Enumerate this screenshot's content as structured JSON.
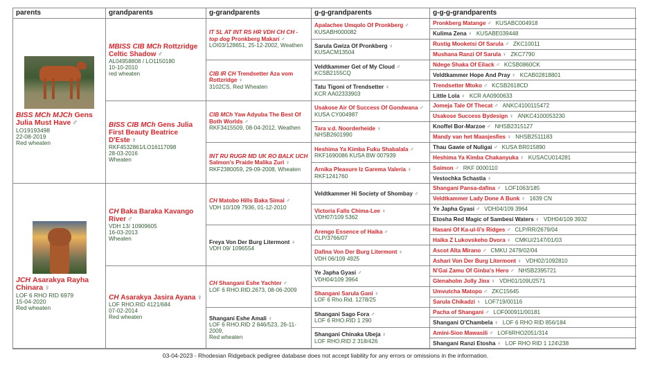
{
  "headers": [
    "parents",
    "grandparents",
    "g-grandparents",
    "g-g-grandparents",
    "g-g-g-grandparents"
  ],
  "colors": {
    "title_red": "#d7262b",
    "registration_green": "#2f5a2f",
    "border": "#8a8a8a"
  },
  "parents": [
    {
      "title": "BISS MCh MJCh",
      "name": "Gens Julia Must Have",
      "sex": "♂",
      "reg": [
        "LO19193498",
        "22-08-2019",
        "Red wheaten"
      ],
      "red": true,
      "photo": "dog-standing-in-field"
    },
    {
      "title": "JCH",
      "name": "Asarakya Rayha Chinara",
      "sex": "♀",
      "reg": [
        "LOF 6 RHO RID 6979",
        "15-04-2020",
        "Red wheaten"
      ],
      "red": true,
      "photo": "dog-sitting-at-sunset"
    }
  ],
  "grandparents": [
    {
      "title": "MBISS CIB MCh",
      "name": "Rottzridge Celtic Shadow",
      "sex": "♂",
      "reg": [
        "AL04958808 / LO1150180",
        "10-10-2010",
        "red wheaten"
      ],
      "red": true
    },
    {
      "title": "BISS CIB MCh",
      "name": "Gens Julia First Beauty Beatrice D'Este",
      "sex": "♀",
      "reg": [
        "RKF4532861/LO16117098",
        "28-03-2016",
        "Wheaten"
      ],
      "red": true
    },
    {
      "title": "CH",
      "name": "Baka Baraka Kavango River",
      "sex": "♂",
      "reg": [
        "VDH 13/ 10909605",
        "16-03-2013",
        "Wheaten"
      ],
      "red": true
    },
    {
      "title": "CH",
      "name": "Asarakya Jasira Ayana",
      "sex": "♀",
      "reg": [
        "LOF RHO.RID 4121/684",
        "07-02-2014",
        "Red wheaten"
      ],
      "red": true
    }
  ],
  "g_grandparents": [
    {
      "title": "IT SL AT INT RS HR VDH CH CH - top dog",
      "name": "Pronkberg Makari",
      "sex": "♂",
      "reg": [
        "LOI03/128651, 25-12-2002, Weathen"
      ],
      "red": true
    },
    {
      "title": "CIB IR CH",
      "name": "Trendsetter Aza vom Rottzridge",
      "sex": "♀",
      "reg": [
        "3102CS, Red Wheaten"
      ],
      "red": true
    },
    {
      "title": "CIB MCh",
      "name": "Yaw Adyuba The Best Of Both Worlds",
      "sex": "♂",
      "reg": [
        "RKF3415509, 08-04-2012, Weathen"
      ],
      "red": true
    },
    {
      "title": "INT RU RUGR MD UK RO BALK UCH",
      "name": "Salmon's Praide Malika Zuri",
      "sex": "♀",
      "reg": [
        "RKF2380059, 29-09-2008, Wheaten"
      ],
      "red": true
    },
    {
      "title": "CH",
      "name": "Matobo Hills Baka Simai",
      "sex": "♂",
      "reg": [
        "VDH 10/109 7936, 01-12-2010"
      ],
      "red": true
    },
    {
      "title": "",
      "name": "Freya Von Der Burg Litermont",
      "sex": "♀",
      "reg": [
        "VDH 09/ 1096554"
      ],
      "red": false
    },
    {
      "title": "CH",
      "name": "Shangani Eshe Yachter",
      "sex": "♂",
      "reg": [
        "LOF 6 RHO.RID.2673, 08-06-2009"
      ],
      "red": true
    },
    {
      "title": "",
      "name": "Shangani Eshe Amali",
      "sex": "♀",
      "reg": [
        "LOF 6 RHO.RID 2 846/523, 26-11-2009,",
        "Red wheaten"
      ],
      "red": false
    }
  ],
  "g_g_grandparents": [
    {
      "name": "Apalachee Umqolo Of Pronkberg",
      "sex": "♂",
      "reg": [
        "KUSABH000082"
      ],
      "red": true
    },
    {
      "name": "Sarula Gwiza Of Pronkberg",
      "sex": "♀",
      "reg": [
        "KUSACM13504"
      ],
      "red": false
    },
    {
      "name": "Veldtkammer Get of My Cloud",
      "sex": "♂",
      "reg": [
        "KCSB2155CQ"
      ],
      "red": false
    },
    {
      "name": "Tatu Tigoni of Trendsetter",
      "sex": "♀",
      "reg": [
        "KCR AA02333903"
      ],
      "red": false
    },
    {
      "name": "Usakose Air Of Success Of Gondwana",
      "sex": "♂",
      "reg": [
        "KUSA CY004987"
      ],
      "red": true
    },
    {
      "name": "Tara v.d. Noorderheide",
      "sex": "♀",
      "reg": [
        "NHSB2601990"
      ],
      "red": true
    },
    {
      "name": "Heshima Ya Kimba Fuku Shabalala",
      "sex": "♂",
      "reg": [
        "RKF1690086 KUSA BW 007939"
      ],
      "red": true
    },
    {
      "name": "Arnika Pleasure Iz Garema Valeria",
      "sex": "♀",
      "reg": [
        "RKF1241760"
      ],
      "red": true
    },
    {
      "name": "Veldtkammer Hi Society of Shombay",
      "sex": "♂",
      "reg": [],
      "red": false
    },
    {
      "name": "Victoria Falls Chima-Lee",
      "sex": "♀",
      "reg": [
        "VDH07/109 5362"
      ],
      "red": true
    },
    {
      "name": "Arengo Essence of Haika",
      "sex": "♂",
      "reg": [
        "CLP/3766/07"
      ],
      "red": true
    },
    {
      "name": "Dafina Von Der Burg Litermont",
      "sex": "♀",
      "reg": [
        "VDH 06/109 4925"
      ],
      "red": true
    },
    {
      "name": "Ye Japha Gyasi",
      "sex": "♂",
      "reg": [
        "VDH04/109 3964"
      ],
      "red": false
    },
    {
      "name": "Shangani Sarula Gani",
      "sex": "♀",
      "reg": [
        "LOF 6 Rho.Rid. 1278/25"
      ],
      "red": true
    },
    {
      "name": "Shangani Sago Fora",
      "sex": "♂",
      "reg": [
        "LOF 6 RHO.RID 1 290"
      ],
      "red": false
    },
    {
      "name": "Shangani Chinaka Ubeja",
      "sex": "♀",
      "reg": [
        "LOF RHO.RID 2 318/426"
      ],
      "red": false
    }
  ],
  "g_g_g_grandparents": [
    {
      "name": "Pronkberg Matange",
      "sex": "♂",
      "reg": [
        "KUSABC004918"
      ],
      "red": true
    },
    {
      "name": "Kulima Zena",
      "sex": "♀",
      "reg": [
        "KUSABE039448"
      ],
      "red": false
    },
    {
      "name": "Rustig Mooketsi Of Sarula",
      "sex": "♂",
      "reg": [
        "ZKC10011"
      ],
      "red": true
    },
    {
      "name": "Mushana Ranzi Of Sarula",
      "sex": "♀",
      "reg": [
        "ZKC7790"
      ],
      "red": true
    },
    {
      "name": "Ndege Shaka Of Eilack",
      "sex": "♂",
      "reg": [
        "KCSB0860CK"
      ],
      "red": true
    },
    {
      "name": "Veldtkammer Hope And Pray",
      "sex": "♀",
      "reg": [
        "KCAB02818801"
      ],
      "red": false
    },
    {
      "name": "Trendsetter Mtoko",
      "sex": "♂",
      "reg": [
        "KCSB2618CD"
      ],
      "red": true
    },
    {
      "name": "Little Lola",
      "sex": "♀",
      "reg": [
        "KCR AA0900633"
      ],
      "red": false
    },
    {
      "name": "Jomeja Tale Of Thecat",
      "sex": "♂",
      "reg": [
        "ANKC4100115472"
      ],
      "red": true
    },
    {
      "name": "Usakose Success Bydesign",
      "sex": "♀",
      "reg": [
        "ANKC4100053230"
      ],
      "red": true
    },
    {
      "name": "Knoffel Bor-Marzoe",
      "sex": "♂",
      "reg": [
        "NHSB2315127"
      ],
      "red": false
    },
    {
      "name": "Mandy van het Maasjesfies",
      "sex": "♀",
      "reg": [
        "NHSB2511183"
      ],
      "red": true
    },
    {
      "name": "Thau Gawie of Nuligai",
      "sex": "♂",
      "reg": [
        "KUSA BR015890"
      ],
      "red": false
    },
    {
      "name": "Heshima Ya Kimba Chakanyuka",
      "sex": "♀",
      "reg": [
        "KUSACU014281"
      ],
      "red": true
    },
    {
      "name": "Saimon",
      "sex": "♂",
      "reg": [
        "RKF 0000110"
      ],
      "red": true
    },
    {
      "name": "Vestochka Schastia",
      "sex": "♀",
      "reg": [],
      "red": false
    },
    {
      "name": "Shangani Pansa-dafina",
      "sex": "♂",
      "reg": [
        "LOF1063/185"
      ],
      "red": true
    },
    {
      "name": "Veldtkammer Lady Done A Bunk",
      "sex": "♀",
      "reg": [
        "1639 CN"
      ],
      "red": true
    },
    {
      "name": "Ye Japha Gyasi",
      "sex": "♂",
      "reg": [
        "VDH04/109 3964"
      ],
      "red": false
    },
    {
      "name": "Etosha Red Magic of Sambesi Waters",
      "sex": "♀",
      "reg": [
        "VDH04/109 3932"
      ],
      "red": false
    },
    {
      "name": "Hasani Of Ka-ul-li's Ridges",
      "sex": "♂",
      "reg": [
        "CLP/RR/2679/04"
      ],
      "red": true
    },
    {
      "name": "Haika Z Lukovskeho Dvora",
      "sex": "♀",
      "reg": [
        "CMKU/2147/01/03"
      ],
      "red": true
    },
    {
      "name": "Ascot Alta Mirano",
      "sex": "♂",
      "reg": [
        "CMKU 2479/02/04"
      ],
      "red": true
    },
    {
      "name": "Ashari Von Der Burg Litermont",
      "sex": "♀",
      "reg": [
        "VDH02/1092810"
      ],
      "red": true
    },
    {
      "name": "N'Gai Zamu Of Ginba's Hero",
      "sex": "♂",
      "reg": [
        "NHSB2395721"
      ],
      "red": true
    },
    {
      "name": "Glenaholm Jolly Jinx",
      "sex": "♀",
      "reg": [
        "VDH01/109U2571"
      ],
      "red": true
    },
    {
      "name": "Umvutcha Matopo",
      "sex": "♂",
      "reg": [
        "ZKC15645"
      ],
      "red": true
    },
    {
      "name": "Sarula Chikadzi",
      "sex": "♀",
      "reg": [
        "LOF719/00116"
      ],
      "red": true
    },
    {
      "name": "Pacha of Shangani",
      "sex": "♂",
      "reg": [
        "LOF000911/00181"
      ],
      "red": true
    },
    {
      "name": "Shangani O'Chambela",
      "sex": "♀",
      "reg": [
        "LOF 6 RHO RID 856/184"
      ],
      "red": false
    },
    {
      "name": "Amini-Sion Mawasili",
      "sex": "♂",
      "reg": [
        "LOF6RHO2051/314"
      ],
      "red": true
    },
    {
      "name": "Shangani Ranzi Etosha",
      "sex": "♀",
      "reg": [
        "LOF RHO RID 1 124\\238"
      ],
      "red": false
    }
  ],
  "footer": "03-04-2023 - Rhodesian Ridgeback pedigree database does not accept liability for any errors or omissions in the information."
}
